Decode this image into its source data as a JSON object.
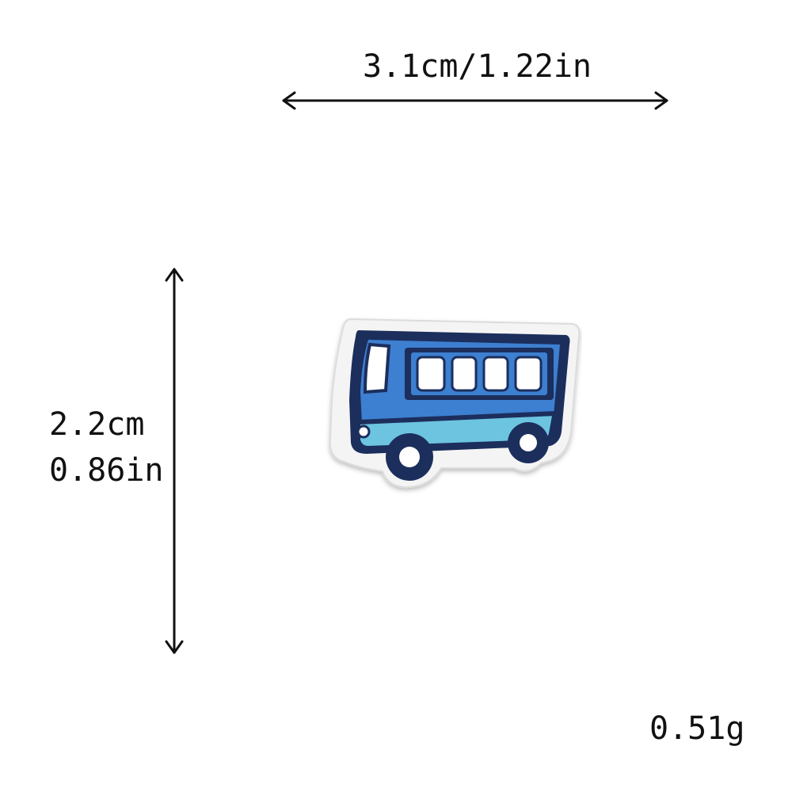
{
  "dimensions": {
    "width_label": "3.1cm/1.22in",
    "height_cm": "2.2cm",
    "height_in": "0.86in",
    "weight": "0.51g"
  },
  "product": {
    "icon": "bus-patch-icon"
  },
  "colors": {
    "navy": "#1c2e5c",
    "blue": "#3d7fd0",
    "light_blue": "#6cc4e0",
    "white": "#ffffff",
    "patch_edge": "#e8e8e8",
    "text": "#111111"
  }
}
